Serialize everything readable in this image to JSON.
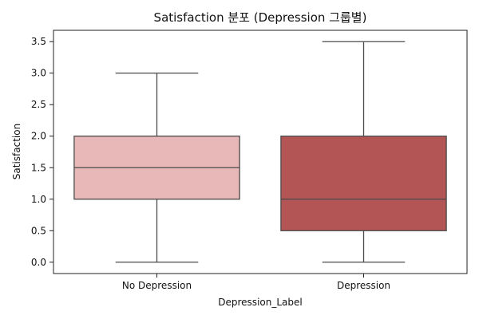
{
  "chart_data": {
    "type": "box",
    "title": "Satisfaction 분포 (Depression 그룹별)",
    "xlabel": "Depression_Label",
    "ylabel": "Satisfaction",
    "ylim": [
      -0.18,
      3.68
    ],
    "yticks": [
      0.0,
      0.5,
      1.0,
      1.5,
      2.0,
      2.5,
      3.0,
      3.5
    ],
    "ytick_labels": [
      "0.0",
      "0.5",
      "1.0",
      "1.5",
      "2.0",
      "2.5",
      "3.0",
      "3.5"
    ],
    "categories": [
      "No Depression",
      "Depression"
    ],
    "grid": false,
    "boxes": [
      {
        "category": "No Depression",
        "whisker_low": 0.0,
        "q1": 1.0,
        "median": 1.5,
        "q3": 2.0,
        "whisker_high": 3.0,
        "color": "#e8b8b8"
      },
      {
        "category": "Depression",
        "whisker_low": 0.0,
        "q1": 0.5,
        "median": 1.0,
        "q3": 2.0,
        "whisker_high": 3.5,
        "color": "#b35555"
      }
    ]
  },
  "colors": {
    "line": "#4a4a4a",
    "frame": "#222222",
    "background": "#ffffff"
  }
}
